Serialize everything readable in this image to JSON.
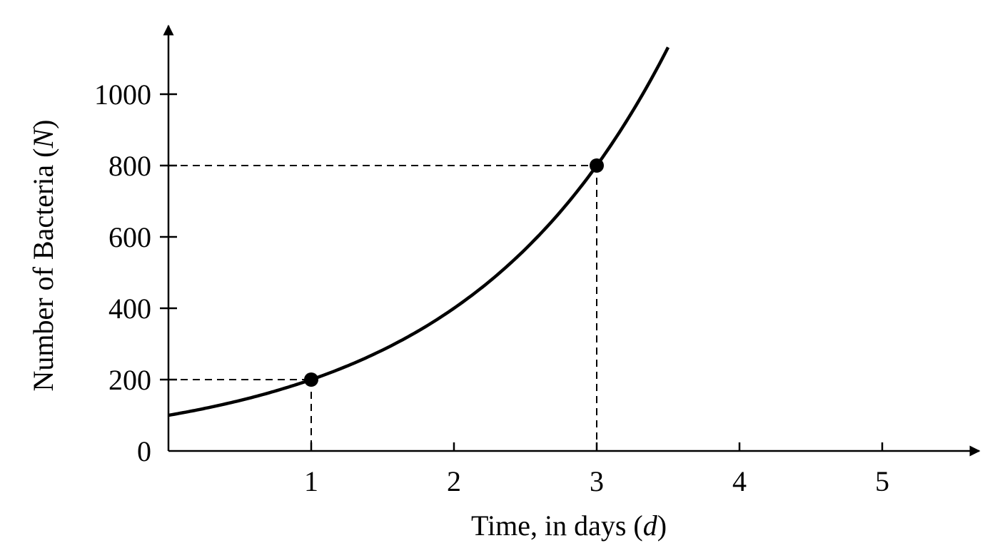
{
  "chart_data": {
    "type": "line",
    "xlabel": {
      "text": "Time, in days (",
      "var": "d",
      "close": ")"
    },
    "ylabel": {
      "text": "Number of Bacteria (",
      "var": "N",
      "close": ")"
    },
    "x_ticks": [
      1,
      2,
      3,
      4,
      5
    ],
    "y_ticks": [
      0,
      200,
      400,
      600,
      800,
      1000
    ],
    "x_tick_labels": [
      "1",
      "2",
      "3",
      "4",
      "5"
    ],
    "y_tick_labels": [
      "0",
      "200",
      "400",
      "600",
      "800",
      "1000"
    ],
    "xlim": [
      0,
      5.5
    ],
    "ylim": [
      0,
      1100
    ],
    "grid": false,
    "series": [
      {
        "function": "N = 100 * 2^d",
        "x": [
          0,
          0.5,
          1,
          1.5,
          2,
          2.5,
          3,
          3.5
        ],
        "y": [
          100,
          141,
          200,
          283,
          400,
          566,
          800,
          1131
        ]
      }
    ],
    "points": [
      {
        "x": 1,
        "y": 200
      },
      {
        "x": 3,
        "y": 800
      }
    ],
    "colors": {
      "line": "#000000",
      "background": "#ffffff"
    }
  }
}
